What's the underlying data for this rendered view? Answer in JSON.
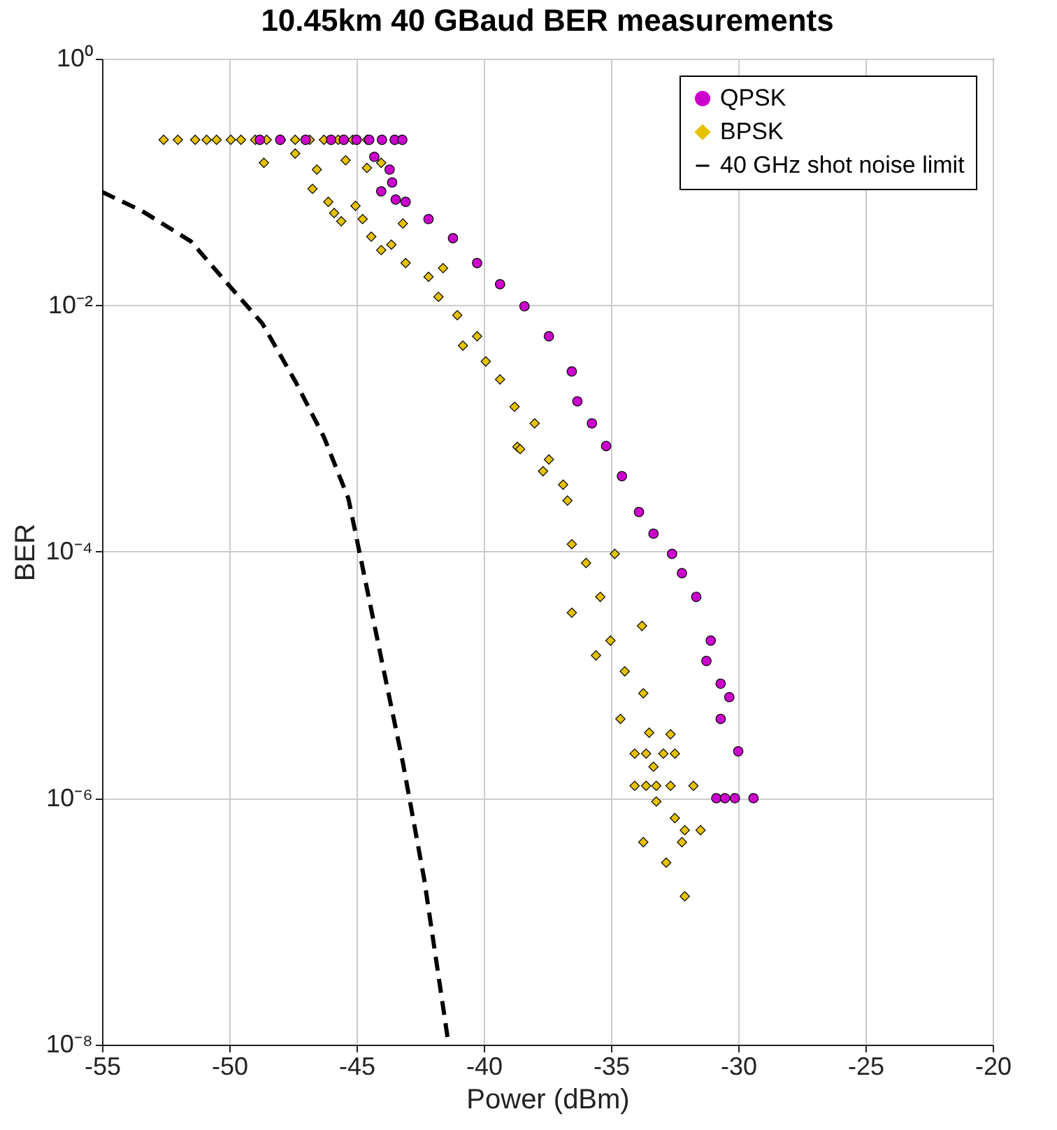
{
  "chart_data": {
    "type": "scatter",
    "title": "10.45km 40 GBaud BER measurements",
    "xlabel": "Power (dBm)",
    "ylabel": "BER",
    "log": "y",
    "grid": true,
    "legend": "top right",
    "xlim": [
      -55,
      -20
    ],
    "xticks": [
      -55,
      -50,
      -45,
      -40,
      -35,
      -30,
      -25,
      -20
    ],
    "ylim": [
      1e-08,
      1
    ],
    "yticks": [
      {
        "value": 1e-08,
        "label": "10⁻⁸"
      },
      {
        "value": 1e-06,
        "label": "10⁻⁶"
      },
      {
        "value": 0.0001,
        "label": "10⁻⁴"
      },
      {
        "value": 0.01,
        "label": "10⁻²"
      },
      {
        "value": 1,
        "label": "10⁰"
      }
    ],
    "series": [
      {
        "name": "QPSK",
        "marker": "circle",
        "color": "#cc00cc",
        "x": [
          -48.8,
          -48,
          -47,
          -46,
          -45.5,
          -45,
          -44.5,
          -44,
          -43.5,
          -43.2,
          -44.3,
          -43.7,
          -43.6,
          -44.03,
          -43.46,
          -43.07,
          -42.17,
          -41.21,
          -40.26,
          -39.36,
          -38.4,
          -37.44,
          -36.54,
          -36.32,
          -35.75,
          -35.19,
          -34.57,
          -33.9,
          -33.33,
          -32.6,
          -32.21,
          -31.65,
          -31.25,
          -31.08,
          -30.69,
          -30.69,
          -30.35,
          -30.0,
          -30.86,
          -30.52,
          -30.13,
          -29.4
        ],
        "values": [
          0.22,
          0.22,
          0.22,
          0.22,
          0.22,
          0.22,
          0.22,
          0.22,
          0.22,
          0.22,
          0.16,
          0.126,
          0.099,
          0.084,
          0.072,
          0.069,
          0.05,
          0.035,
          0.022,
          0.0148,
          0.0098,
          0.0056,
          0.0029,
          0.00166,
          0.0011,
          0.00072,
          0.00041,
          0.00021,
          0.00014,
          9.6e-05,
          6.7e-05,
          4.3e-05,
          1.3e-05,
          1.9e-05,
          8.5e-06,
          4.4e-06,
          6.6e-06,
          2.4e-06,
          1e-06,
          1e-06,
          1e-06,
          1e-06
        ]
      },
      {
        "name": "BPSK",
        "marker": "diamond",
        "color": "#e6c200",
        "x": [
          -52.58,
          -52.02,
          -51.34,
          -50.89,
          -50.5,
          -49.94,
          -49.54,
          -48.98,
          -48.53,
          -47.97,
          -47.41,
          -46.84,
          -46.28,
          -45.72,
          -45.15,
          -44.59,
          -48.64,
          -47.41,
          -46.56,
          -45.43,
          -44.59,
          -44.03,
          -46.73,
          -46.11,
          -45.88,
          -45.6,
          -45.04,
          -44.76,
          -44.42,
          -44.03,
          -43.63,
          -43.18,
          -43.07,
          -42.17,
          -41.6,
          -41.78,
          -41.04,
          -40.82,
          -40.26,
          -39.92,
          -39.36,
          -38.79,
          -38.68,
          -38.0,
          -37.44,
          -36.88,
          -38.57,
          -37.67,
          -36.71,
          -36.54,
          -35.98,
          -34.85,
          -36.54,
          -35.42,
          -35.59,
          -35.02,
          -33.78,
          -34.46,
          -33.73,
          -34.63,
          -33.5,
          -32.66,
          -34.07,
          -33.62,
          -32.94,
          -32.49,
          -33.33,
          -34.07,
          -33.62,
          -33.22,
          -32.66,
          -31.76,
          -33.22,
          -32.49,
          -32.1,
          -31.48,
          -33.73,
          -32.21,
          -32.83,
          -32.1
        ],
        "values": [
          0.22,
          0.22,
          0.22,
          0.22,
          0.22,
          0.22,
          0.22,
          0.22,
          0.22,
          0.22,
          0.22,
          0.22,
          0.22,
          0.22,
          0.22,
          0.22,
          0.143,
          0.17,
          0.126,
          0.15,
          0.13,
          0.143,
          0.088,
          0.069,
          0.056,
          0.048,
          0.064,
          0.05,
          0.036,
          0.028,
          0.031,
          0.046,
          0.022,
          0.017,
          0.02,
          0.0117,
          0.0083,
          0.0047,
          0.0056,
          0.0035,
          0.0025,
          0.0015,
          0.00071,
          0.0011,
          0.00056,
          0.00035,
          0.00068,
          0.00045,
          0.00026,
          0.000115,
          8.1e-05,
          9.6e-05,
          3.2e-05,
          4.3e-05,
          1.44e-05,
          1.9e-05,
          2.5e-05,
          1.07e-05,
          7.1e-06,
          4.4e-06,
          3.4e-06,
          3.3e-06,
          2.3e-06,
          2.3e-06,
          2.3e-06,
          2.3e-06,
          1.8e-06,
          1.26e-06,
          1.26e-06,
          1.26e-06,
          1.26e-06,
          1.26e-06,
          9.4e-07,
          6.9e-07,
          5.5e-07,
          5.5e-07,
          4.4e-07,
          4.4e-07,
          3e-07,
          1.6e-07
        ]
      },
      {
        "name": "40 GHz shot noise limit",
        "type": "line",
        "line_style": "dashed",
        "color": "#000000",
        "x": [
          -55,
          -53.42,
          -51.51,
          -50.05,
          -48.7,
          -47.4,
          -46.28,
          -45.32,
          -44.87,
          -44.03,
          -43.18,
          -42.34,
          -41.38
        ],
        "values": [
          0.083,
          0.058,
          0.033,
          0.0148,
          0.0071,
          0.0024,
          0.00085,
          0.00027,
          9.6e-05,
          1.37e-05,
          1.95e-06,
          2.2e-07,
          1e-08
        ]
      }
    ]
  }
}
